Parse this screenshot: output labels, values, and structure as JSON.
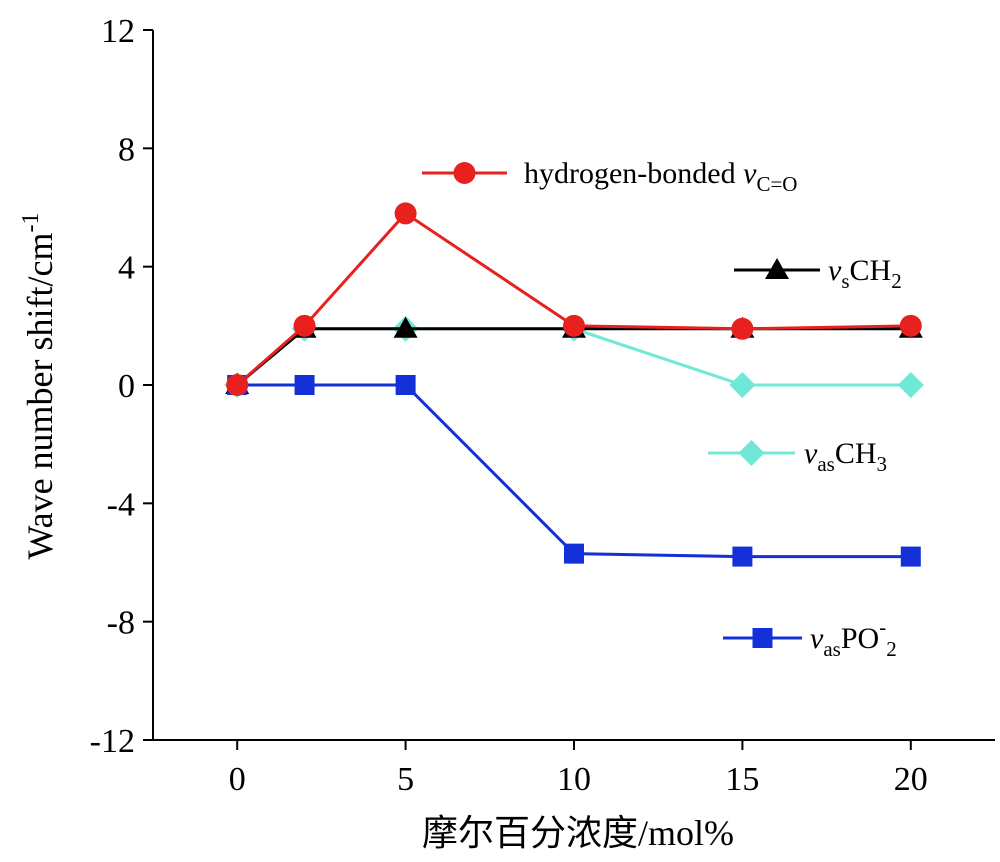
{
  "chart_data": {
    "type": "line",
    "xlabel": "摩尔百分浓度/mol%",
    "ylabel": "Wave number shift/cm",
    "ylabel_sup": "-1",
    "x": [
      0,
      2,
      5,
      10,
      15,
      20
    ],
    "xticks": [
      0,
      5,
      10,
      15,
      20
    ],
    "yticks": [
      12,
      8,
      4,
      0,
      -4,
      -8,
      -12
    ],
    "xlim": [
      -2.5,
      22.5
    ],
    "ylim": [
      -12,
      12
    ],
    "grid": false,
    "series": [
      {
        "name": "hydrogen-bonded νC=O",
        "legend_main": "hydrogen-bonded ",
        "legend_italic": "v",
        "legend_sub": "C=O",
        "legend_tail": "",
        "color": "#e8201e",
        "marker": "circle",
        "values": [
          0,
          2,
          5.8,
          2,
          1.9,
          2
        ]
      },
      {
        "name": "νsCH2",
        "legend_main": "",
        "legend_italic": "v",
        "legend_sub": "s",
        "legend_tail": "CH",
        "legend_tail_sub": "2",
        "color": "#000000",
        "marker": "triangle",
        "values": [
          0,
          1.9,
          1.9,
          1.9,
          1.9,
          1.9
        ]
      },
      {
        "name": "νasCH3",
        "legend_main": "",
        "legend_italic": "v",
        "legend_sub": "as",
        "legend_tail": "CH",
        "legend_tail_sub": "3",
        "color": "#6fe8d6",
        "marker": "diamond",
        "values": [
          0,
          1.9,
          1.9,
          1.9,
          0,
          0
        ]
      },
      {
        "name": "νasPO-2",
        "legend_main": "",
        "legend_italic": "v",
        "legend_sub": "as",
        "legend_tail": "PO",
        "legend_tail_sup": "-",
        "legend_tail_sub": "2",
        "color": "#1430d8",
        "marker": "square",
        "values": [
          0,
          0,
          0,
          -5.7,
          -5.8,
          -5.8
        ]
      }
    ]
  }
}
